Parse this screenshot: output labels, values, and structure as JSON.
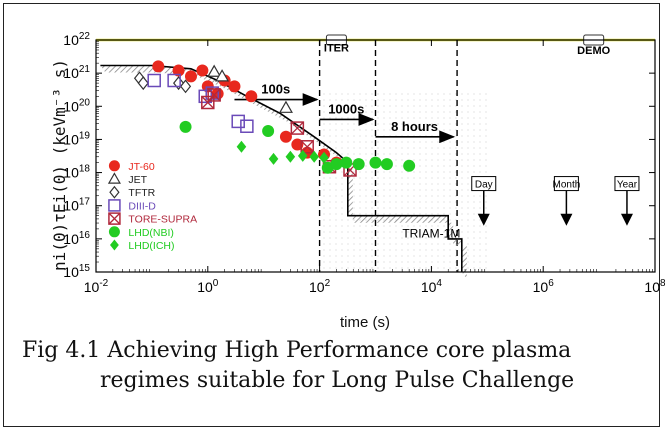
{
  "chart_data": {
    "type": "scatter",
    "title": "",
    "xlabel": "time (s)",
    "ylabel": "ni(0)τEi(0) (keVm⁻³ s)",
    "xscale": "log",
    "yscale": "log",
    "xlim": [
      0.01,
      100000000
    ],
    "ylim": [
      1000000000000000.0,
      1e+22
    ],
    "x_ticks": [
      {
        "v": 0.01,
        "b": "10",
        "e": "-2"
      },
      {
        "v": 1,
        "b": "10",
        "e": "0"
      },
      {
        "v": 100,
        "b": "10",
        "e": "2"
      },
      {
        "v": 10000,
        "b": "10",
        "e": "4"
      },
      {
        "v": 1000000,
        "b": "10",
        "e": "6"
      },
      {
        "v": 100000000,
        "b": "10",
        "e": "8"
      }
    ],
    "y_ticks": [
      {
        "v": 1000000000000000.0,
        "b": "10",
        "e": "15"
      },
      {
        "v": 1e+16,
        "b": "10",
        "e": "16"
      },
      {
        "v": 1e+17,
        "b": "10",
        "e": "17"
      },
      {
        "v": 1e+18,
        "b": "10",
        "e": "18"
      },
      {
        "v": 1e+19,
        "b": "10",
        "e": "19"
      },
      {
        "v": 1e+20,
        "b": "10",
        "e": "20"
      },
      {
        "v": 1e+21,
        "b": "10",
        "e": "21"
      },
      {
        "v": 1e+22,
        "b": "10",
        "e": "22"
      }
    ],
    "series": [
      {
        "name": "JT-60",
        "marker": "circle-filled",
        "color": "#e8281e",
        "points": [
          [
            0.13,
            1.6e+21
          ],
          [
            0.3,
            1.2e+21
          ],
          [
            0.5,
            8e+20
          ],
          [
            0.8,
            1.2e+21
          ],
          [
            1.0,
            4e+20
          ],
          [
            1.5,
            2.4e+20
          ],
          [
            2.0,
            6e+20
          ],
          [
            3.0,
            4e+20
          ],
          [
            6,
            2e+20
          ],
          [
            25,
            1.2e+19
          ],
          [
            40,
            7e+18
          ],
          [
            60,
            4e+18
          ],
          [
            120,
            3.5e+18
          ],
          [
            200,
            2e+18
          ]
        ]
      },
      {
        "name": "JET",
        "marker": "triangle-open",
        "color": "#333333",
        "points": [
          [
            1.3,
            1.1e+21
          ],
          [
            1.8,
            8e+20
          ],
          [
            25,
            9e+19
          ]
        ]
      },
      {
        "name": "TFTR",
        "marker": "diamond-open",
        "color": "#333333",
        "points": [
          [
            0.06,
            7e+20
          ],
          [
            0.07,
            5e+20
          ],
          [
            0.3,
            5e+20
          ],
          [
            0.4,
            4e+20
          ]
        ]
      },
      {
        "name": "DIII-D",
        "marker": "square-open",
        "color": "#6a4ab8",
        "points": [
          [
            0.11,
            6e+20
          ],
          [
            0.25,
            6e+20
          ],
          [
            0.9,
            2e+20
          ],
          [
            1.2,
            2.5e+20
          ],
          [
            3.5,
            3.5e+19
          ],
          [
            5,
            2.5e+19
          ]
        ]
      },
      {
        "name": "TORE-SUPRA",
        "marker": "square-x",
        "color": "#b0283c",
        "points": [
          [
            1.0,
            1.3e+20
          ],
          [
            1.3,
            2.2e+20
          ],
          [
            40,
            2.2e+19
          ],
          [
            60,
            6e+18
          ],
          [
            150,
            1.5e+18
          ],
          [
            350,
            1.2e+18
          ]
        ]
      },
      {
        "name": "LHD(NBI)",
        "marker": "circle-filled",
        "color": "#22cc22",
        "points": [
          [
            0.4,
            2.4e+19
          ],
          [
            12,
            1.8e+19
          ],
          [
            140,
            1.4e+18
          ],
          [
            200,
            1.8e+18
          ],
          [
            300,
            2e+18
          ],
          [
            500,
            1.8e+18
          ],
          [
            1000,
            2e+18
          ],
          [
            1600,
            1.8e+18
          ],
          [
            4000,
            1.6e+18
          ]
        ]
      },
      {
        "name": "LHD(ICH)",
        "marker": "diamond-filled",
        "color": "#22cc22",
        "points": [
          [
            4,
            6e+18
          ],
          [
            15,
            2.6e+18
          ],
          [
            30,
            3e+18
          ],
          [
            50,
            3.2e+18
          ],
          [
            80,
            3e+18
          ],
          [
            120,
            2.8e+18
          ]
        ]
      }
    ],
    "boundary_curve": [
      [
        0.012,
        1.7e+21
      ],
      [
        0.1,
        1.7e+21
      ],
      [
        0.5,
        1.35e+21
      ],
      [
        1.5,
        6e+20
      ],
      [
        5,
        2e+20
      ],
      [
        20,
        6e+19
      ],
      [
        80,
        1.2e+19
      ],
      [
        200,
        4e+18
      ],
      [
        300,
        2.2e+18
      ],
      [
        320,
        2e+18
      ],
      [
        320,
        5e+16
      ],
      [
        20000,
        5e+16
      ],
      [
        20000,
        1e+16
      ],
      [
        35000,
        1e+16
      ],
      [
        35000,
        1000000000000000.0
      ]
    ],
    "reference_lines": [
      {
        "type": "hline",
        "value": 1e+22
      },
      {
        "type": "vline",
        "value": 100,
        "style": "dashed"
      },
      {
        "type": "vline",
        "value": 1000,
        "style": "dashed"
      },
      {
        "type": "vline",
        "value": 28800,
        "style": "dashed"
      }
    ],
    "arrows": [
      {
        "label": "100s",
        "x_from": 3,
        "x_to": 90,
        "y": 1.6e+20
      },
      {
        "label": "1000s",
        "x_from": 100,
        "x_to": 900,
        "y": 4e+19
      },
      {
        "label": "8 hours",
        "x_from": 1000,
        "x_to": 25000,
        "y": 1.2e+19
      }
    ],
    "annotations": [
      {
        "text": "ITER",
        "x": 200,
        "y": 6e+21
      },
      {
        "text": "DEMO",
        "x": 8000000,
        "y": 5e+21
      },
      {
        "text": "TRIAM-1M",
        "x": 2000,
        "y": 1.1e+16
      }
    ],
    "time_markers": [
      {
        "label": "Day",
        "value": 86400
      },
      {
        "label": "Month",
        "value": 2600000
      },
      {
        "label": "Year",
        "value": 31500000
      }
    ],
    "legend_position": "bottom-left"
  },
  "caption": {
    "line1": "Fig 4.1 Achieving High Performance core plasma",
    "line2": "regimes suitable for Long Pulse Challenge"
  }
}
